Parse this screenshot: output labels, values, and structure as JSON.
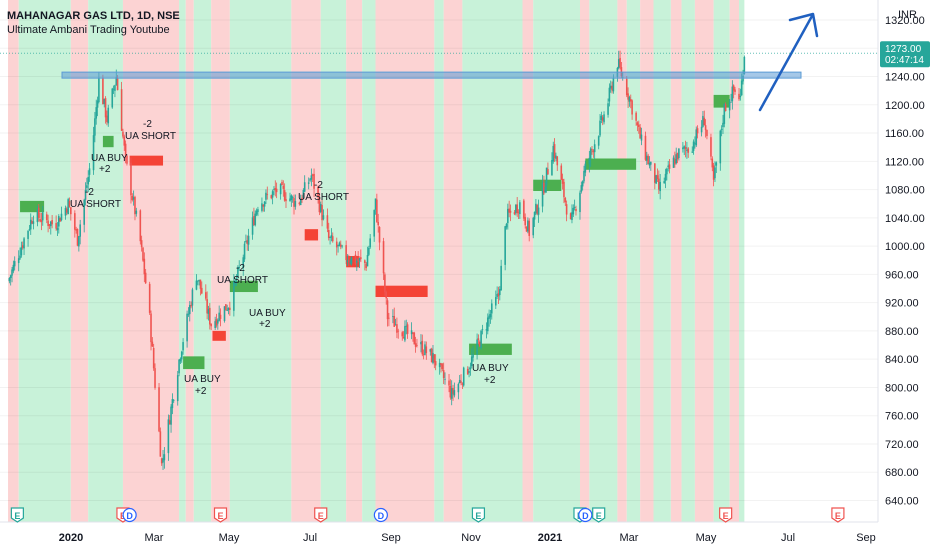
{
  "header": {
    "symbol_line": "MAHANAGAR GAS LTD, 1D, NSE",
    "indicator_name": "Ultimate Ambani Trading Youtube"
  },
  "price_scale": {
    "currency": "INR",
    "ticks": [
      "1320.00",
      "1280.00",
      "1240.00",
      "1200.00",
      "1160.00",
      "1120.00",
      "1080.00",
      "1040.00",
      "1000.00",
      "960.00",
      "920.00",
      "880.00",
      "840.00",
      "800.00",
      "760.00",
      "720.00",
      "680.00",
      "640.00"
    ],
    "last_price": "1273.00",
    "countdown": "02:47:14"
  },
  "time_axis": {
    "labels": [
      "2020",
      "Mar",
      "May",
      "Jul",
      "Sep",
      "Nov",
      "2021",
      "Mar",
      "May",
      "Jul",
      "Sep"
    ]
  },
  "signals": [
    "-2",
    "UA SHORT",
    "UA BUY",
    "+2"
  ],
  "events": [
    "E",
    "D"
  ],
  "colors": {
    "up": "#26a69a",
    "down": "#ef5350",
    "bull_zone": "#c8f2d9",
    "bear_zone": "#fcd3d3",
    "buy_box": "#4caf50",
    "sell_box": "#f44336",
    "resistance": "#5b9bd5",
    "arrow": "#2060c0",
    "last_price_bg": "#26a69a"
  },
  "chart_data": {
    "type": "candlestick",
    "title": "MAHANAGAR GAS LTD, 1D, NSE",
    "ylim": [
      620,
      1340
    ],
    "y_unit": "INR",
    "resistance_level": 1242,
    "last_close": 1273.0,
    "swings": [
      {
        "date": "2019-12-01",
        "price": 950
      },
      {
        "date": "2019-12-20",
        "price": 1045
      },
      {
        "date": "2020-01-05",
        "price": 1030
      },
      {
        "date": "2020-01-15",
        "price": 1060
      },
      {
        "date": "2020-01-22",
        "price": 1010
      },
      {
        "date": "2020-02-01",
        "price": 1120
      },
      {
        "date": "2020-02-07",
        "price": 1235
      },
      {
        "date": "2020-02-13",
        "price": 1180
      },
      {
        "date": "2020-02-20",
        "price": 1240
      },
      {
        "date": "2020-02-27",
        "price": 1120
      },
      {
        "date": "2020-03-08",
        "price": 1020
      },
      {
        "date": "2020-03-15",
        "price": 920
      },
      {
        "date": "2020-03-25",
        "price": 690
      },
      {
        "date": "2020-04-08",
        "price": 850
      },
      {
        "date": "2020-04-20",
        "price": 960
      },
      {
        "date": "2020-05-01",
        "price": 890
      },
      {
        "date": "2020-05-15",
        "price": 920
      },
      {
        "date": "2020-06-05",
        "price": 1060
      },
      {
        "date": "2020-06-20",
        "price": 1080
      },
      {
        "date": "2020-07-05",
        "price": 1060
      },
      {
        "date": "2020-07-15",
        "price": 1100
      },
      {
        "date": "2020-07-28",
        "price": 1010
      },
      {
        "date": "2020-08-10",
        "price": 985
      },
      {
        "date": "2020-08-25",
        "price": 975
      },
      {
        "date": "2020-09-01",
        "price": 1060
      },
      {
        "date": "2020-09-10",
        "price": 900
      },
      {
        "date": "2020-09-28",
        "price": 870
      },
      {
        "date": "2020-10-15",
        "price": 840
      },
      {
        "date": "2020-10-28",
        "price": 790
      },
      {
        "date": "2020-11-10",
        "price": 830
      },
      {
        "date": "2020-11-25",
        "price": 900
      },
      {
        "date": "2020-12-02",
        "price": 930
      },
      {
        "date": "2020-12-08",
        "price": 1040
      },
      {
        "date": "2020-12-18",
        "price": 1060
      },
      {
        "date": "2020-12-25",
        "price": 1020
      },
      {
        "date": "2021-01-05",
        "price": 1085
      },
      {
        "date": "2021-01-12",
        "price": 1140
      },
      {
        "date": "2021-01-25",
        "price": 1030
      },
      {
        "date": "2021-02-05",
        "price": 1110
      },
      {
        "date": "2021-02-20",
        "price": 1190
      },
      {
        "date": "2021-03-01",
        "price": 1260
      },
      {
        "date": "2021-03-10",
        "price": 1210
      },
      {
        "date": "2021-03-20",
        "price": 1140
      },
      {
        "date": "2021-04-01",
        "price": 1080
      },
      {
        "date": "2021-04-15",
        "price": 1130
      },
      {
        "date": "2021-04-25",
        "price": 1140
      },
      {
        "date": "2021-05-05",
        "price": 1180
      },
      {
        "date": "2021-05-12",
        "price": 1090
      },
      {
        "date": "2021-05-20",
        "price": 1195
      },
      {
        "date": "2021-05-27",
        "price": 1220
      },
      {
        "date": "2021-06-01",
        "price": 1210
      },
      {
        "date": "2021-06-04",
        "price": 1273
      }
    ],
    "zones": [
      {
        "start": "2019-12-01",
        "end": "2019-12-09",
        "side": "bear"
      },
      {
        "start": "2019-12-09",
        "end": "2020-01-17",
        "side": "bull"
      },
      {
        "start": "2020-01-17",
        "end": "2020-01-30",
        "side": "bear"
      },
      {
        "start": "2020-01-30",
        "end": "2020-02-25",
        "side": "bull"
      },
      {
        "start": "2020-02-25",
        "end": "2020-04-07",
        "side": "bear"
      },
      {
        "start": "2020-04-07",
        "end": "2020-04-12",
        "side": "bull"
      },
      {
        "start": "2020-04-12",
        "end": "2020-04-18",
        "side": "bear"
      },
      {
        "start": "2020-04-18",
        "end": "2020-05-01",
        "side": "bull"
      },
      {
        "start": "2020-05-01",
        "end": "2020-05-15",
        "side": "bear"
      },
      {
        "start": "2020-05-15",
        "end": "2020-06-30",
        "side": "bull"
      },
      {
        "start": "2020-06-30",
        "end": "2020-07-22",
        "side": "bear"
      },
      {
        "start": "2020-07-22",
        "end": "2020-08-10",
        "side": "bull"
      },
      {
        "start": "2020-08-10",
        "end": "2020-08-22",
        "side": "bear"
      },
      {
        "start": "2020-08-22",
        "end": "2020-09-01",
        "side": "bull"
      },
      {
        "start": "2020-09-01",
        "end": "2020-10-15",
        "side": "bear"
      },
      {
        "start": "2020-10-15",
        "end": "2020-10-22",
        "side": "bull"
      },
      {
        "start": "2020-10-22",
        "end": "2020-11-05",
        "side": "bear"
      },
      {
        "start": "2020-11-05",
        "end": "2020-12-20",
        "side": "bull"
      },
      {
        "start": "2020-12-20",
        "end": "2020-12-28",
        "side": "bear"
      },
      {
        "start": "2020-12-28",
        "end": "2021-02-01",
        "side": "bull"
      },
      {
        "start": "2021-02-01",
        "end": "2021-02-08",
        "side": "bear"
      },
      {
        "start": "2021-02-08",
        "end": "2021-03-01",
        "side": "bull"
      },
      {
        "start": "2021-03-01",
        "end": "2021-03-08",
        "side": "bear"
      },
      {
        "start": "2021-03-08",
        "end": "2021-03-18",
        "side": "bull"
      },
      {
        "start": "2021-03-18",
        "end": "2021-03-28",
        "side": "bear"
      },
      {
        "start": "2021-03-28",
        "end": "2021-04-10",
        "side": "bull"
      },
      {
        "start": "2021-04-10",
        "end": "2021-04-18",
        "side": "bear"
      },
      {
        "start": "2021-04-18",
        "end": "2021-04-28",
        "side": "bull"
      },
      {
        "start": "2021-04-28",
        "end": "2021-05-12",
        "side": "bear"
      },
      {
        "start": "2021-05-12",
        "end": "2021-05-24",
        "side": "bull"
      },
      {
        "start": "2021-05-24",
        "end": "2021-05-31",
        "side": "bear"
      },
      {
        "start": "2021-05-31",
        "end": "2021-06-04",
        "side": "bull"
      }
    ],
    "boxes": [
      {
        "start": "2019-12-10",
        "end": "2019-12-28",
        "lo": 1048,
        "hi": 1064,
        "side": "buy"
      },
      {
        "start": "2020-02-10",
        "end": "2020-02-18",
        "lo": 1140,
        "hi": 1156,
        "side": "buy"
      },
      {
        "start": "2020-03-01",
        "end": "2020-03-26",
        "lo": 1114,
        "hi": 1128,
        "side": "sell"
      },
      {
        "start": "2020-04-10",
        "end": "2020-04-26",
        "lo": 826,
        "hi": 844,
        "side": "buy"
      },
      {
        "start": "2020-05-02",
        "end": "2020-05-12",
        "lo": 866,
        "hi": 880,
        "side": "sell"
      },
      {
        "start": "2020-05-15",
        "end": "2020-06-05",
        "lo": 935,
        "hi": 951,
        "side": "buy"
      },
      {
        "start": "2020-07-10",
        "end": "2020-07-20",
        "lo": 1008,
        "hi": 1024,
        "side": "sell"
      },
      {
        "start": "2020-08-10",
        "end": "2020-08-20",
        "lo": 970,
        "hi": 986,
        "side": "sell"
      },
      {
        "start": "2020-09-01",
        "end": "2020-10-10",
        "lo": 928,
        "hi": 944,
        "side": "sell"
      },
      {
        "start": "2020-11-10",
        "end": "2020-12-12",
        "lo": 846,
        "hi": 862,
        "side": "buy"
      },
      {
        "start": "2020-12-28",
        "end": "2021-01-18",
        "lo": 1078,
        "hi": 1094,
        "side": "buy"
      },
      {
        "start": "2021-02-05",
        "end": "2021-03-15",
        "lo": 1108,
        "hi": 1124,
        "side": "buy"
      },
      {
        "start": "2021-05-12",
        "end": "2021-05-24",
        "lo": 1196,
        "hi": 1214,
        "side": "buy"
      }
    ],
    "events": [
      {
        "date": "2019-12-08",
        "type": "E"
      },
      {
        "date": "2020-02-25",
        "type": "E"
      },
      {
        "date": "2020-03-01",
        "type": "D"
      },
      {
        "date": "2020-05-08",
        "type": "E"
      },
      {
        "date": "2020-07-22",
        "type": "E"
      },
      {
        "date": "2020-09-05",
        "type": "D"
      },
      {
        "date": "2020-11-17",
        "type": "E"
      },
      {
        "date": "2021-02-01",
        "type": "E"
      },
      {
        "date": "2021-02-05",
        "type": "D"
      },
      {
        "date": "2021-02-15",
        "type": "E"
      },
      {
        "date": "2021-05-21",
        "type": "E"
      },
      {
        "date": "2021-08-13",
        "type": "E"
      }
    ]
  }
}
